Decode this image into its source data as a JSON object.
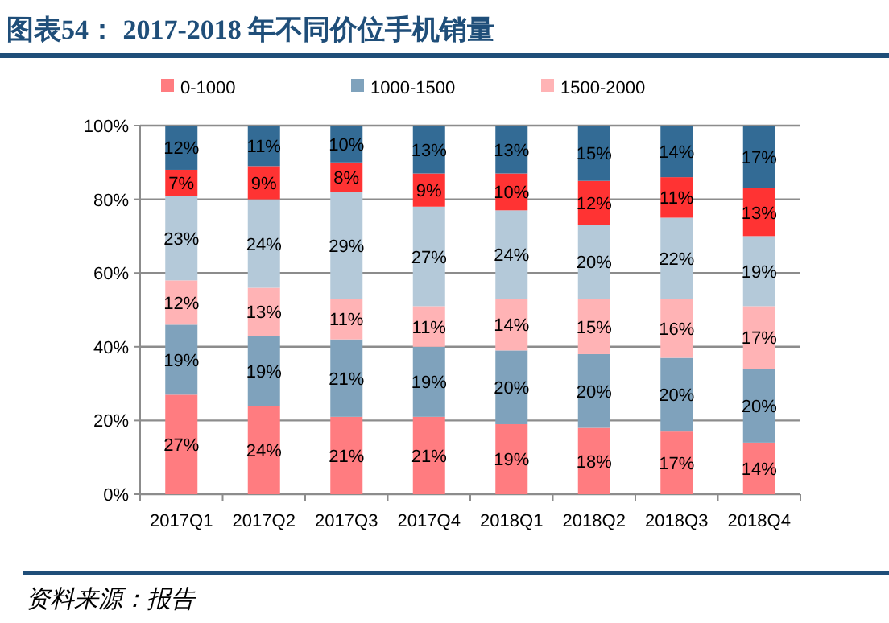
{
  "chart_data": {
    "type": "bar",
    "stacked": true,
    "title": "图表54： 2017-2018 年不同价位手机销量",
    "categories": [
      "2017Q1",
      "2017Q2",
      "2017Q3",
      "2017Q4",
      "2018Q1",
      "2018Q2",
      "2018Q3",
      "2018Q4"
    ],
    "series": [
      {
        "name": "0-1000",
        "color": "#ff7c80",
        "values": [
          27,
          24,
          21,
          21,
          19,
          18,
          17,
          14
        ],
        "value_labels": [
          "27%",
          "24%",
          "21%",
          "21%",
          "19%",
          "18%",
          "17%",
          "14%"
        ]
      },
      {
        "name": "1000-1500",
        "color": "#7fa2bc",
        "values": [
          19,
          19,
          21,
          19,
          20,
          20,
          20,
          20
        ],
        "value_labels": [
          "19%",
          "19%",
          "21%",
          "19%",
          "20%",
          "20%",
          "20%",
          "20%"
        ]
      },
      {
        "name": "1500-2000",
        "color": "#ffb3b5",
        "values": [
          12,
          13,
          11,
          11,
          14,
          15,
          16,
          17
        ],
        "value_labels": [
          "12%",
          "13%",
          "11%",
          "11%",
          "14%",
          "15%",
          "16%",
          "17%"
        ]
      },
      {
        "color": "#b4c9d9",
        "values": [
          23,
          24,
          29,
          27,
          24,
          20,
          22,
          19
        ],
        "value_labels": [
          "23%",
          "24%",
          "29%",
          "27%",
          "24%",
          "20%",
          "22%",
          "19%"
        ]
      },
      {
        "color": "#ff3333",
        "values": [
          7,
          9,
          8,
          9,
          10,
          12,
          11,
          13
        ],
        "value_labels": [
          "7%",
          "9%",
          "8%",
          "9%",
          "10%",
          "12%",
          "11%",
          "13%"
        ]
      },
      {
        "color": "#336b95",
        "values": [
          12,
          11,
          10,
          13,
          13,
          15,
          14,
          17
        ],
        "value_labels": [
          "12%",
          "11%",
          "10%",
          "13%",
          "13%",
          "15%",
          "14%",
          "17%"
        ]
      }
    ],
    "ylim": [
      0,
      100
    ],
    "yticks": [
      {
        "value": 0,
        "label": "0%"
      },
      {
        "value": 20,
        "label": "20%"
      },
      {
        "value": 40,
        "label": "40%"
      },
      {
        "value": 60,
        "label": "60%"
      },
      {
        "value": 80,
        "label": "80%"
      },
      {
        "value": 100,
        "label": "100%"
      }
    ],
    "grid": "y",
    "legend": "top",
    "annotations": [
      "资料来源：报告"
    ]
  }
}
